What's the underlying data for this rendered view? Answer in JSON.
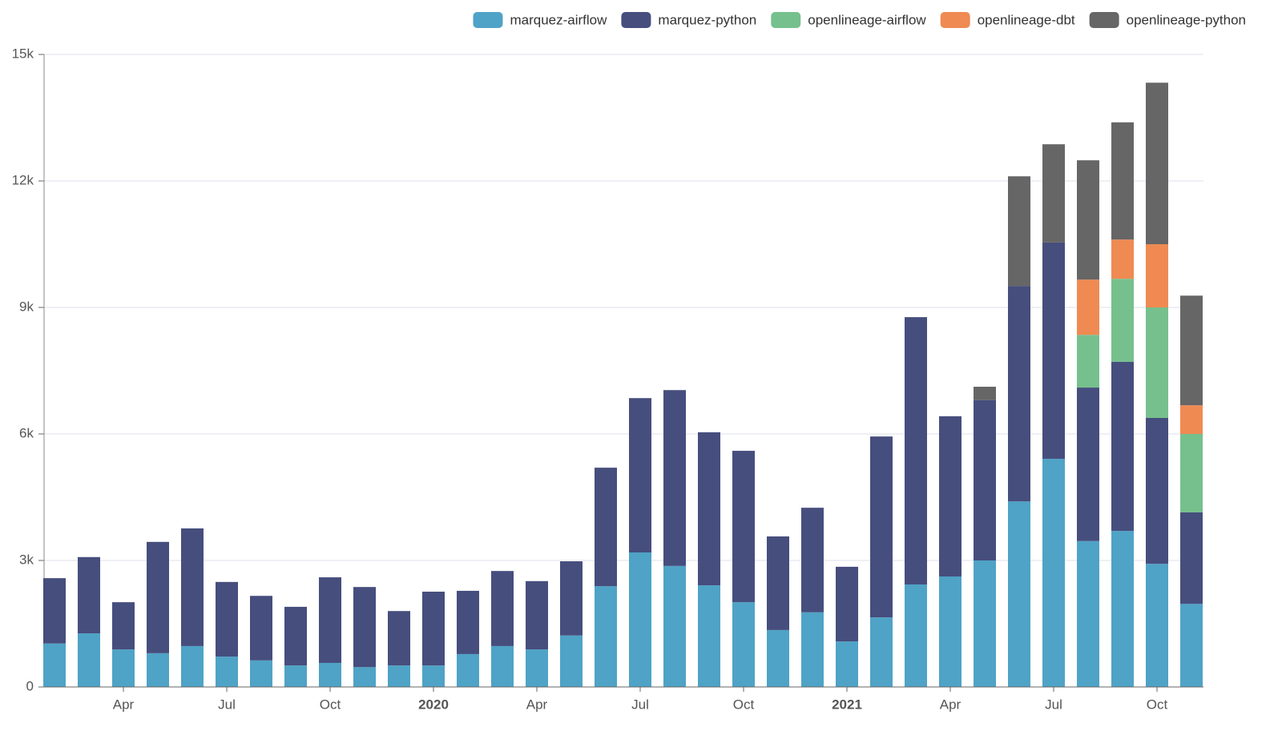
{
  "chart_data": {
    "type": "stacked-bar",
    "categories": [
      null,
      null,
      "Apr",
      null,
      null,
      "Jul",
      null,
      null,
      "Oct",
      null,
      null,
      "2020",
      null,
      null,
      "Apr",
      null,
      null,
      "Jul",
      null,
      null,
      "Oct",
      null,
      null,
      "2021",
      null,
      null,
      "Apr",
      null,
      null,
      "Jul",
      null,
      null,
      "Oct",
      null
    ],
    "bold_categories": [
      "2020",
      "2021"
    ],
    "series": [
      {
        "name": "marquez-airflow",
        "color": "#4fa3c6",
        "values": [
          1030,
          1270,
          890,
          800,
          970,
          720,
          630,
          510,
          570,
          470,
          510,
          510,
          780,
          970,
          890,
          1220,
          2390,
          3190,
          2870,
          2410,
          2010,
          1350,
          1770,
          1080,
          1650,
          2430,
          2620,
          3000,
          4400,
          5410,
          3460,
          3700,
          2920,
          1970
        ]
      },
      {
        "name": "marquez-python",
        "color": "#464e7d",
        "values": [
          1550,
          1810,
          1120,
          2640,
          2790,
          1770,
          1530,
          1390,
          2030,
          1900,
          1290,
          1750,
          1500,
          1780,
          1620,
          1760,
          2810,
          3660,
          4170,
          3630,
          3590,
          2220,
          2480,
          1770,
          4290,
          6340,
          3800,
          3800,
          5110,
          5130,
          3640,
          4010,
          3460,
          2170
        ]
      },
      {
        "name": "openlineage-airflow",
        "color": "#76c08e",
        "values": [
          null,
          null,
          null,
          null,
          null,
          null,
          null,
          null,
          null,
          null,
          null,
          null,
          null,
          null,
          null,
          null,
          null,
          null,
          null,
          null,
          null,
          null,
          null,
          null,
          null,
          null,
          null,
          null,
          null,
          null,
          1250,
          1970,
          2620,
          1860
        ]
      },
      {
        "name": "openlineage-dbt",
        "color": "#ef8a53",
        "values": [
          null,
          null,
          null,
          null,
          null,
          null,
          null,
          null,
          null,
          null,
          null,
          null,
          null,
          null,
          null,
          null,
          null,
          null,
          null,
          null,
          null,
          null,
          null,
          null,
          null,
          null,
          null,
          null,
          null,
          null,
          1310,
          930,
          1500,
          680
        ]
      },
      {
        "name": "openlineage-python",
        "color": "#666666",
        "values": [
          null,
          null,
          null,
          null,
          null,
          null,
          null,
          null,
          null,
          null,
          null,
          null,
          null,
          null,
          null,
          null,
          null,
          null,
          null,
          null,
          null,
          null,
          null,
          null,
          null,
          null,
          null,
          320,
          2600,
          2330,
          2830,
          2780,
          3830,
          2600
        ]
      }
    ],
    "ylim": [
      0,
      15000
    ],
    "yticks": [
      0,
      {
        "value": 3000,
        "label": "3k"
      },
      {
        "value": 6000,
        "label": "6k"
      },
      {
        "value": 9000,
        "label": "9k"
      },
      {
        "value": 12000,
        "label": "12k"
      },
      {
        "value": 15000,
        "label": "15k"
      }
    ],
    "grid": true,
    "legend": "top-right"
  }
}
